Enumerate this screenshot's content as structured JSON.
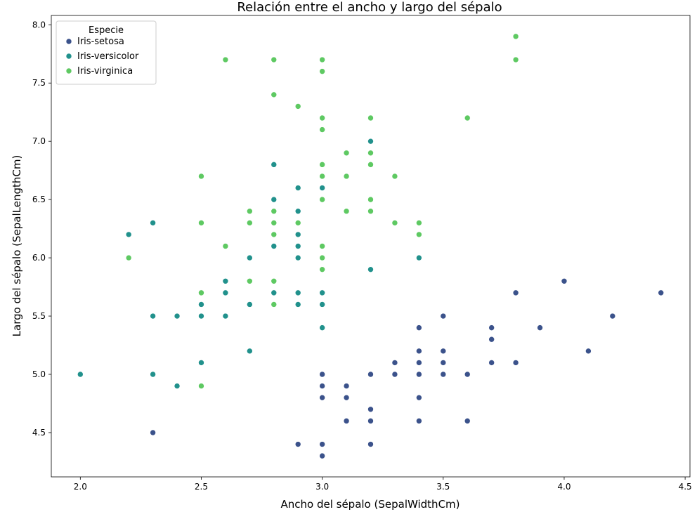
{
  "chart_data": {
    "type": "scatter",
    "title": "Relación entre el ancho y largo del sépalo",
    "xlabel": "Ancho del sépalo (SepalWidthCm)",
    "ylabel": "Largo del sépalo (SepalLengthCm)",
    "xlim": [
      1.88,
      4.52
    ],
    "ylim": [
      4.12,
      8.08
    ],
    "xticks": [
      "2.0",
      "2.5",
      "3.0",
      "3.5",
      "4.0",
      "4.5"
    ],
    "yticks": [
      "4.5",
      "5.0",
      "5.5",
      "6.0",
      "6.5",
      "7.0",
      "7.5",
      "8.0"
    ],
    "grid": false,
    "legend": {
      "title": "Especie",
      "position": "top-left"
    },
    "series": [
      {
        "name": "Iris-setosa",
        "color": "#3b528b",
        "points": [
          [
            2.3,
            4.5
          ],
          [
            2.9,
            4.4
          ],
          [
            3.0,
            4.4
          ],
          [
            3.0,
            4.3
          ],
          [
            3.2,
            4.4
          ],
          [
            3.0,
            5.0
          ],
          [
            3.0,
            4.9
          ],
          [
            3.0,
            4.8
          ],
          [
            3.1,
            4.9
          ],
          [
            3.1,
            4.8
          ],
          [
            3.1,
            4.6
          ],
          [
            3.2,
            5.0
          ],
          [
            3.2,
            4.7
          ],
          [
            3.2,
            4.6
          ],
          [
            3.3,
            5.1
          ],
          [
            3.3,
            5.0
          ],
          [
            3.4,
            5.4
          ],
          [
            3.4,
            5.2
          ],
          [
            3.4,
            5.1
          ],
          [
            3.4,
            5.0
          ],
          [
            3.4,
            4.8
          ],
          [
            3.4,
            4.6
          ],
          [
            3.5,
            5.5
          ],
          [
            3.5,
            5.2
          ],
          [
            3.5,
            5.1
          ],
          [
            3.5,
            5.0
          ],
          [
            3.6,
            5.0
          ],
          [
            3.6,
            4.6
          ],
          [
            3.7,
            5.4
          ],
          [
            3.7,
            5.3
          ],
          [
            3.7,
            5.1
          ],
          [
            3.8,
            5.7
          ],
          [
            3.8,
            5.1
          ],
          [
            3.9,
            5.4
          ],
          [
            4.0,
            5.8
          ],
          [
            4.1,
            5.2
          ],
          [
            4.2,
            5.5
          ],
          [
            4.4,
            5.7
          ]
        ]
      },
      {
        "name": "Iris-versicolor",
        "color": "#21918c",
        "points": [
          [
            2.0,
            5.0
          ],
          [
            2.2,
            6.2
          ],
          [
            2.3,
            6.3
          ],
          [
            2.3,
            5.5
          ],
          [
            2.3,
            5.0
          ],
          [
            2.4,
            5.5
          ],
          [
            2.4,
            4.9
          ],
          [
            2.5,
            5.6
          ],
          [
            2.5,
            5.5
          ],
          [
            2.5,
            5.1
          ],
          [
            2.6,
            5.8
          ],
          [
            2.6,
            5.7
          ],
          [
            2.6,
            5.5
          ],
          [
            2.7,
            6.0
          ],
          [
            2.7,
            5.6
          ],
          [
            2.7,
            5.2
          ],
          [
            2.8,
            6.8
          ],
          [
            2.8,
            6.5
          ],
          [
            2.8,
            6.1
          ],
          [
            2.8,
            5.7
          ],
          [
            2.9,
            6.6
          ],
          [
            2.9,
            6.4
          ],
          [
            2.9,
            6.2
          ],
          [
            2.9,
            6.1
          ],
          [
            2.9,
            6.0
          ],
          [
            2.9,
            5.7
          ],
          [
            2.9,
            5.6
          ],
          [
            3.0,
            6.6
          ],
          [
            3.0,
            5.7
          ],
          [
            3.0,
            5.6
          ],
          [
            3.0,
            5.4
          ],
          [
            3.2,
            7.0
          ],
          [
            3.2,
            5.9
          ],
          [
            3.4,
            6.0
          ]
        ]
      },
      {
        "name": "Iris-virginica",
        "color": "#5ec962",
        "points": [
          [
            2.2,
            6.0
          ],
          [
            2.5,
            6.7
          ],
          [
            2.5,
            6.3
          ],
          [
            2.5,
            5.7
          ],
          [
            2.5,
            4.9
          ],
          [
            2.6,
            7.7
          ],
          [
            2.6,
            6.1
          ],
          [
            2.7,
            6.4
          ],
          [
            2.7,
            6.3
          ],
          [
            2.7,
            5.8
          ],
          [
            2.8,
            7.7
          ],
          [
            2.8,
            7.4
          ],
          [
            2.8,
            6.4
          ],
          [
            2.8,
            6.3
          ],
          [
            2.8,
            6.2
          ],
          [
            2.8,
            5.8
          ],
          [
            2.8,
            5.6
          ],
          [
            2.9,
            7.3
          ],
          [
            2.9,
            6.3
          ],
          [
            3.0,
            7.7
          ],
          [
            3.0,
            7.6
          ],
          [
            3.0,
            7.2
          ],
          [
            3.0,
            7.1
          ],
          [
            3.0,
            6.8
          ],
          [
            3.0,
            6.7
          ],
          [
            3.0,
            6.5
          ],
          [
            3.0,
            6.1
          ],
          [
            3.0,
            6.0
          ],
          [
            3.0,
            5.9
          ],
          [
            3.1,
            6.9
          ],
          [
            3.1,
            6.7
          ],
          [
            3.1,
            6.4
          ],
          [
            3.2,
            7.2
          ],
          [
            3.2,
            6.9
          ],
          [
            3.2,
            6.8
          ],
          [
            3.2,
            6.5
          ],
          [
            3.2,
            6.4
          ],
          [
            3.3,
            6.7
          ],
          [
            3.3,
            6.3
          ],
          [
            3.4,
            6.3
          ],
          [
            3.4,
            6.2
          ],
          [
            3.6,
            7.2
          ],
          [
            3.8,
            7.9
          ],
          [
            3.8,
            7.7
          ]
        ]
      }
    ]
  }
}
